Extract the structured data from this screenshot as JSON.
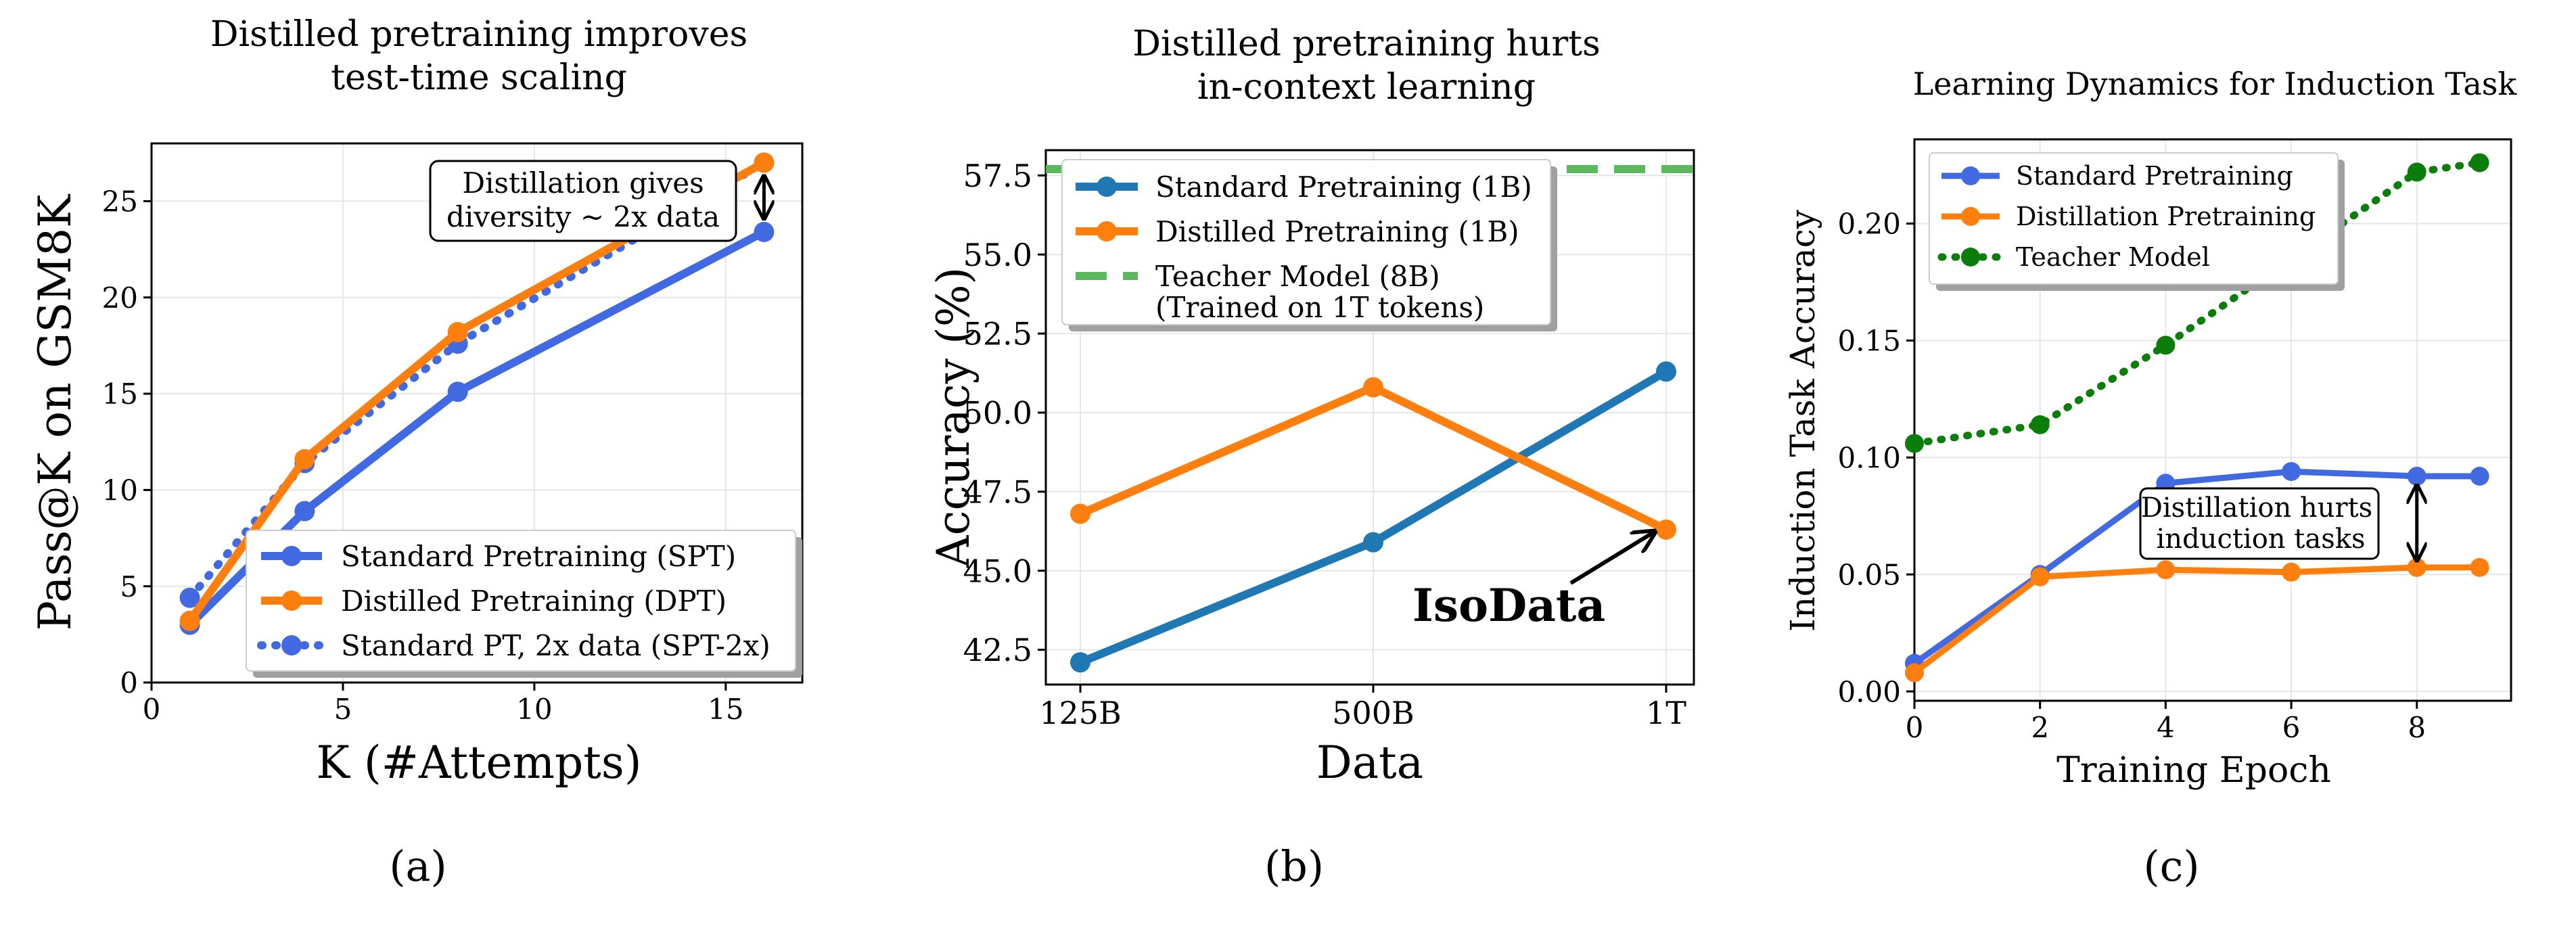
{
  "colors": {
    "blue": "#4169e1",
    "orange": "#ff7f0e",
    "steel": "#1f77b4",
    "green_dash": "#5cb85c",
    "dark_green": "#0b7d0b",
    "grid": "#e6e6e6",
    "black": "#000000"
  },
  "captions": [
    "(a)",
    "(b)",
    "(c)"
  ],
  "chart_data": [
    {
      "type": "line",
      "title_lines": [
        "Distilled pretraining improves",
        "test-time scaling"
      ],
      "xlabel": "K (#Attempts)",
      "ylabel": "Pass@K on GSM8K",
      "xlim": [
        0,
        17
      ],
      "ylim": [
        0,
        28
      ],
      "xticks": [
        0,
        5,
        10,
        15
      ],
      "yticks": [
        0,
        5,
        10,
        15,
        20,
        25
      ],
      "series": [
        {
          "name": "Standard Pretraining (SPT)",
          "style": "solid",
          "color": "blue",
          "x": [
            1,
            4,
            8,
            16
          ],
          "y": [
            3.0,
            8.9,
            15.1,
            23.4
          ]
        },
        {
          "name": "Distilled Pretraining (DPT)",
          "style": "solid",
          "color": "orange",
          "x": [
            1,
            4,
            8,
            16
          ],
          "y": [
            3.2,
            11.6,
            18.2,
            27.0
          ]
        },
        {
          "name": "Standard PT, 2x data (SPT-2x)",
          "style": "dotted",
          "color": "blue",
          "x": [
            1,
            4,
            8,
            16
          ],
          "y": [
            4.4,
            11.4,
            17.6,
            27.0
          ]
        }
      ],
      "annotation_lines": [
        "Distillation gives",
        "diversity ~ 2x data"
      ],
      "legend_position": "lower-right"
    },
    {
      "type": "line",
      "title_lines": [
        "Distilled pretraining hurts",
        "in-context learning"
      ],
      "xlabel": "Data",
      "ylabel": "Accuracy (%)",
      "categories": [
        "125B",
        "500B",
        "1T"
      ],
      "ylim": [
        41.4,
        58.3
      ],
      "yticks": [
        42.5,
        45.0,
        47.5,
        50.0,
        52.5,
        55.0,
        57.5
      ],
      "ytick_labels": [
        "42.5",
        "45.0",
        "47.5",
        "50.0",
        "52.5",
        "55.0",
        "57.5"
      ],
      "series": [
        {
          "name": "Standard Pretraining (1B)",
          "style": "solid",
          "color": "steel",
          "values": [
            42.1,
            45.9,
            51.3
          ]
        },
        {
          "name": "Distilled Pretraining (1B)",
          "style": "solid",
          "color": "orange",
          "values": [
            46.8,
            50.8,
            46.3
          ]
        }
      ],
      "reference_line": {
        "name_lines": [
          "Teacher Model (8B)",
          "(Trained on 1T tokens)"
        ],
        "value": 57.7,
        "color": "green_dash",
        "style": "dashed"
      },
      "annotation": "IsoData",
      "legend_position": "top-left"
    },
    {
      "type": "line",
      "title_lines": [
        "Learning Dynamics for Induction Task"
      ],
      "xlabel": "Training Epoch",
      "ylabel": "Induction Task Accuracy",
      "xlim": [
        0,
        9.5
      ],
      "ylim": [
        -0.004,
        0.236
      ],
      "xticks": [
        0,
        2,
        4,
        6,
        8
      ],
      "yticks": [
        0.0,
        0.05,
        0.1,
        0.15,
        0.2
      ],
      "ytick_labels": [
        "0.00",
        "0.05",
        "0.10",
        "0.15",
        "0.20"
      ],
      "series": [
        {
          "name": "Standard Pretraining",
          "style": "solid",
          "color": "blue",
          "x": [
            0,
            2,
            4,
            6,
            8,
            9
          ],
          "y": [
            0.012,
            0.05,
            0.089,
            0.094,
            0.092,
            0.092
          ]
        },
        {
          "name": "Distillation Pretraining",
          "style": "solid",
          "color": "orange",
          "x": [
            0,
            2,
            4,
            6,
            8,
            9
          ],
          "y": [
            0.008,
            0.049,
            0.052,
            0.051,
            0.053,
            0.053
          ]
        },
        {
          "name": "Teacher Model",
          "style": "dotted",
          "color": "dark_green",
          "x": [
            0,
            2,
            4,
            8,
            9
          ],
          "y": [
            0.106,
            0.114,
            0.148,
            0.222,
            0.226
          ]
        }
      ],
      "annotation_lines": [
        "Distillation hurts",
        "induction tasks"
      ],
      "legend_position": "top-left"
    }
  ]
}
